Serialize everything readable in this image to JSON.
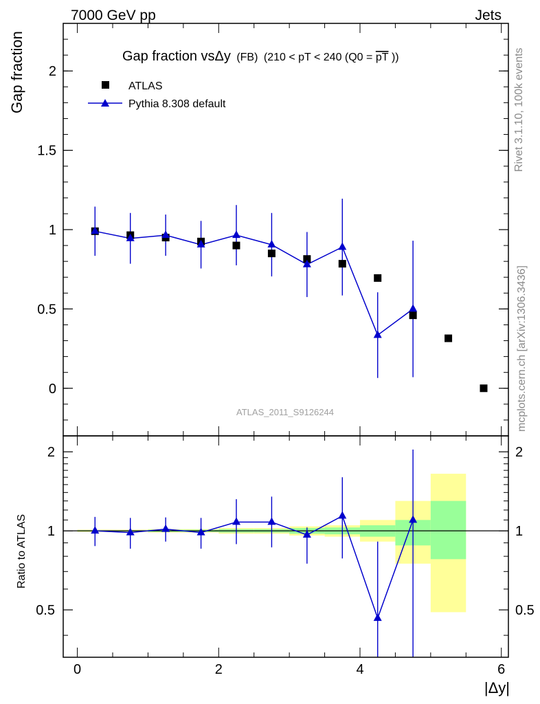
{
  "header": {
    "energy": "7000 GeV pp",
    "process": "Jets"
  },
  "side_labels": {
    "rivet": "Rivet 3.1.10,  100k events",
    "mcplots": "mcplots.cern.ch [arXiv:1306.3436]"
  },
  "watermark": "ATLAS_2011_S9126244",
  "chart_data": [
    {
      "type": "scatter",
      "title": "Gap fraction vsΔy (FB) (210 < pT < 240 (Q0 =pT))",
      "title_parts": {
        "main": "Gap fraction vsΔy",
        "fb": "(FB)",
        "range": "(210 < pT < 240 (Q0 =",
        "overline": "pT",
        "close": "))"
      },
      "ylabel": "Gap fraction",
      "xlim": [
        -0.2,
        6.1
      ],
      "ylim": [
        -0.3,
        2.3
      ],
      "y_ticks": [
        "0",
        "0.5",
        "1",
        "1.5",
        "2"
      ],
      "legend": [
        {
          "name": "ATLAS",
          "marker": "square",
          "color": "#000000"
        },
        {
          "name": "Pythia 8.308 default",
          "marker": "triangle",
          "color": "#0000cc"
        }
      ],
      "series": [
        {
          "name": "ATLAS",
          "x": [
            0.25,
            0.75,
            1.25,
            1.75,
            2.25,
            2.75,
            3.25,
            3.75,
            4.25,
            4.75,
            5.25,
            5.75
          ],
          "y": [
            0.99,
            0.965,
            0.95,
            0.925,
            0.9,
            0.85,
            0.815,
            0.785,
            0.695,
            0.46,
            0.315,
            0.0
          ]
        },
        {
          "name": "Pythia 8.308 default",
          "x": [
            0.25,
            0.75,
            1.25,
            1.75,
            2.25,
            2.75,
            3.25,
            3.75,
            4.25,
            4.75
          ],
          "y": [
            0.99,
            0.945,
            0.965,
            0.905,
            0.965,
            0.905,
            0.78,
            0.89,
            0.335,
            0.5
          ],
          "yerr": [
            0.155,
            0.16,
            0.13,
            0.15,
            0.19,
            0.2,
            0.205,
            0.305,
            0.27,
            0.43
          ]
        }
      ]
    },
    {
      "type": "scatter",
      "title": "",
      "xlabel": "|Δy|",
      "ylabel": "Ratio to ATLAS",
      "xlim": [
        -0.2,
        6.1
      ],
      "ylim": [
        0.33,
        2.3
      ],
      "x_ticks": [
        "0",
        "2",
        "4",
        "6"
      ],
      "y_ticks": [
        "0.5",
        "1",
        "2"
      ],
      "reference_line": 1,
      "bands": {
        "edges": [
          0.0,
          0.5,
          1.0,
          1.5,
          2.0,
          2.5,
          3.0,
          3.5,
          4.0,
          4.5,
          5.0,
          5.5
        ],
        "stat_lo": [
          0.995,
          0.995,
          0.99,
          0.99,
          0.985,
          0.985,
          0.975,
          0.97,
          0.95,
          0.88,
          0.78
        ],
        "stat_hi": [
          1.005,
          1.005,
          1.01,
          1.01,
          1.015,
          1.015,
          1.025,
          1.03,
          1.05,
          1.1,
          1.3
        ],
        "tot_lo": [
          0.99,
          0.99,
          0.985,
          0.985,
          0.975,
          0.975,
          0.96,
          0.95,
          0.91,
          0.75,
          0.49
        ],
        "tot_hi": [
          1.01,
          1.01,
          1.015,
          1.015,
          1.025,
          1.025,
          1.04,
          1.05,
          1.1,
          1.3,
          1.65
        ],
        "stat_color": "#99ff99",
        "total_color": "#ffff99"
      },
      "series": [
        {
          "name": "Pythia 8.308 default",
          "x": [
            0.25,
            0.75,
            1.25,
            1.75,
            2.25,
            2.75,
            3.25,
            3.75,
            4.25,
            4.75
          ],
          "y": [
            1.0,
            0.985,
            1.015,
            0.985,
            1.08,
            1.08,
            0.965,
            1.14,
            0.465,
            1.1
          ],
          "ylo": [
            0.875,
            0.855,
            0.91,
            0.855,
            0.89,
            0.865,
            0.75,
            0.785,
            0.33,
            0.33
          ],
          "yhi": [
            1.13,
            1.12,
            1.125,
            1.12,
            1.32,
            1.35,
            null,
            1.6,
            0.91,
            2.04
          ]
        }
      ]
    }
  ]
}
